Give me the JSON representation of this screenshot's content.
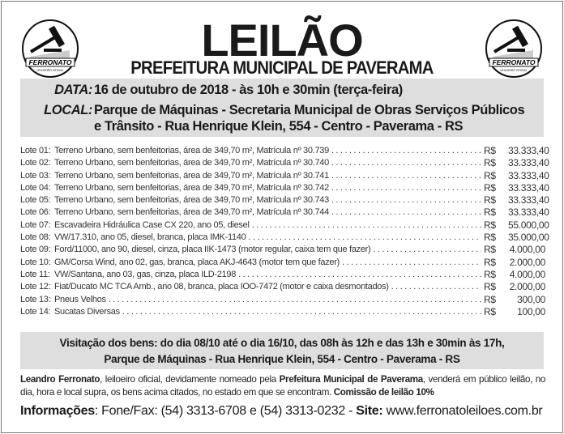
{
  "logo": {
    "brand": "FERRONATO",
    "tagline": "LEILOEIRO OFICIAL",
    "icon": "gavel-icon"
  },
  "title": "LEILÃO",
  "subtitle": "PREFEITURA MUNICIPAL DE PAVERAMA",
  "data": {
    "label": "DATA:",
    "value": "16 de outubro de 2018 - às 10h e 30min (terça-feira)"
  },
  "local": {
    "label": "LOCAL:",
    "line1": "Parque de Máquinas - Secretaria Municipal de Obras Serviços Públicos",
    "line2": "e Trânsito - Rua Henrique Klein, 554 - Centro - Paverama - RS"
  },
  "lots": [
    {
      "num": "Lote 01:",
      "desc": "Terreno Urbano, sem benfeitorias, área de 349,70 m², Matrícula nº 30.739",
      "currency": "R$",
      "value": "33.333,40"
    },
    {
      "num": "Lote 02:",
      "desc": "Terreno Urbano, sem benfeitorias, área de 349,70 m², Matrícula nº 30.740",
      "currency": "R$",
      "value": "33.333,40"
    },
    {
      "num": "Lote 03:",
      "desc": "Terreno Urbano, sem benfeitorias, área de 349,70 m², Matrícula nº 30.741",
      "currency": "R$",
      "value": "33.333,40"
    },
    {
      "num": "Lote 04:",
      "desc": "Terreno Urbano, sem benfeitorias, área de 349,70 m², Matrícula nº 30.742",
      "currency": "R$",
      "value": "33.333,40"
    },
    {
      "num": "Lote 05:",
      "desc": "Terreno Urbano, sem benfeitorias, área de 349,70 m², Matrícula nº 30.743",
      "currency": "R$",
      "value": "33.333,40"
    },
    {
      "num": "Lote 06:",
      "desc": "Terreno Urbano, sem benfeitorias, área de 349,70 m², Matrícula nº 30.744",
      "currency": "R$",
      "value": "33.333,40"
    },
    {
      "num": "Lote 07:",
      "desc": "Escavadeira Hidráulica Case CX 220, ano 05, diesel",
      "currency": "R$",
      "value": "55.000,00"
    },
    {
      "num": "Lote 08:",
      "desc": "VW/17.310, ano 05, diesel, branca, placa IMK-1140",
      "currency": "R$",
      "value": "35.000,00"
    },
    {
      "num": "Lote 09:",
      "desc": "Ford/11000, ano 90, diesel, cinza, placa IIK-1473 (motor regular, caixa tem que fazer)",
      "currency": "R$",
      "value": "4.000,00"
    },
    {
      "num": "Lote 10:",
      "desc": "GM/Corsa Wind, ano 02, gas, branca, placa AKJ-4643 (motor tem que fazer)",
      "currency": "R$",
      "value": "2.000,00"
    },
    {
      "num": "Lote 11:",
      "desc": "VW/Santana, ano 03, gas, cinza, placa ILD-2198",
      "currency": "R$",
      "value": "4.000,00"
    },
    {
      "num": "Lote 12:",
      "desc": "Fiat/Ducato MC TCA Amb., ano 08, branca, placa IOO-7472 (motor e caixa desmontados)",
      "currency": "R$",
      "value": "2.000,00"
    },
    {
      "num": "Lote 13:",
      "desc": "Pneus Velhos",
      "currency": "R$",
      "value": "300,00"
    },
    {
      "num": "Lote 14:",
      "desc": "Sucatas Diversas",
      "currency": "R$",
      "value": "100,00"
    }
  ],
  "visit": {
    "line1": "Visitação dos bens: do dia 08/10 até o dia 16/10, das 08h às 12h e das 13h e 30min às 17h,",
    "line2": "Parque de Máquinas - Rua Henrique Klein, 554 - Centro - Paverama - RS"
  },
  "para": {
    "name": "Leandro Ferronato",
    "t1": ", leiloeiro oficial, devidamente nomeado pela ",
    "org": "Prefeitura Municipal de Paverama",
    "t2": ", venderá em público leilão, no dia, hora e local supra, os bens acima citados, no estado em que se encontram. ",
    "commission": "Comissão de leilão 10%"
  },
  "contact": {
    "label": "Informações",
    "phones": ": Fone/Fax: (54) 3313-6708 e (54) 3313-0232 - ",
    "site_label": "Site:",
    "site": " www.ferronatoleiloes.com.br"
  },
  "colors": {
    "box_bg": "#dedede",
    "text": "#1a1a1a"
  }
}
